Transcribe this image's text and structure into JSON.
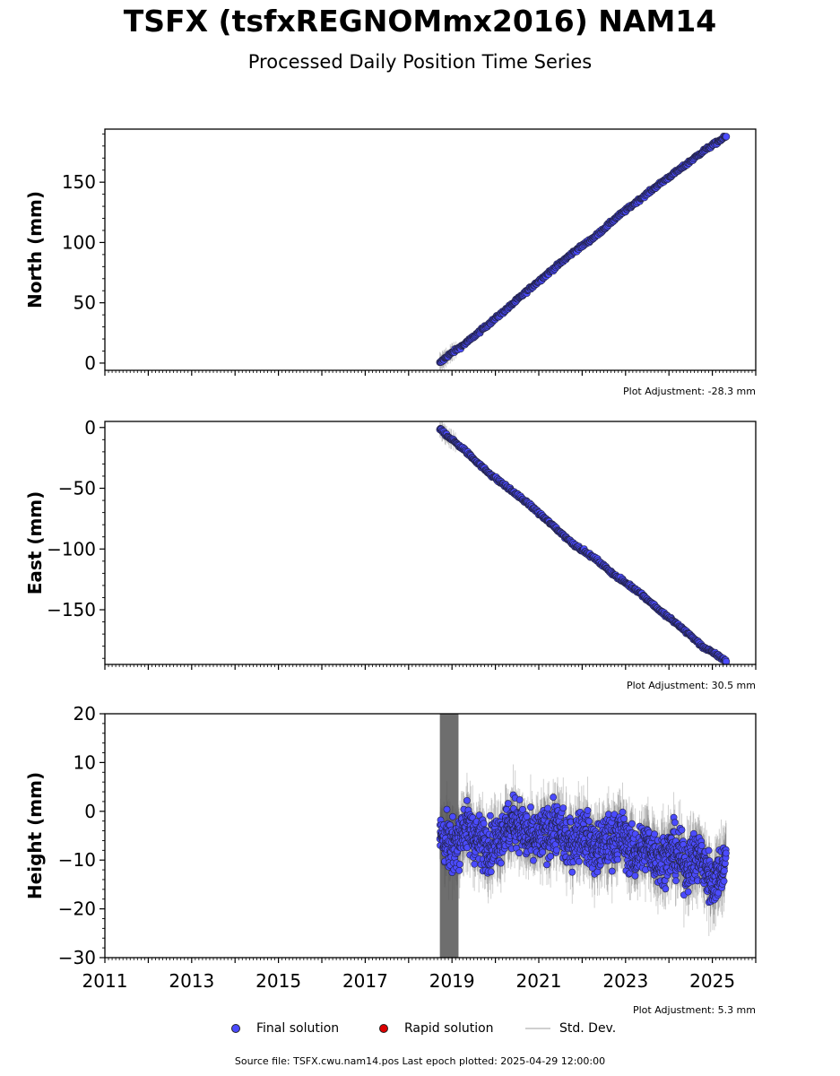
{
  "title": "TSFX (tsfxREGNOMmx2016) NAM14",
  "subtitle": "Processed Daily Position Time Series",
  "legend": {
    "final": {
      "label": "Final solution",
      "color": "#4b4bff"
    },
    "rapid": {
      "label": "Rapid solution",
      "color": "#dd0000"
    },
    "std": {
      "label": "Std. Dev.",
      "color": "#cccccc"
    }
  },
  "footer": "Source file: TSFX.cwu.nam14.pos  Last epoch plotted: 2025-04-29 12:00:00",
  "chart_data": [
    {
      "type": "scatter",
      "ylabel": "North (mm)",
      "xlim": [
        2011,
        2026
      ],
      "ylim": [
        -6,
        194
      ],
      "yticks": [
        0,
        50,
        100,
        150
      ],
      "adjustment": "Plot Adjustment: -28.3 mm",
      "series": [
        {
          "name": "Final solution",
          "x": [
            2018.72,
            2018.9,
            2019.3,
            2019.8,
            2020.3,
            2020.8,
            2021.3,
            2021.8,
            2022.3,
            2022.8,
            2023.3,
            2023.8,
            2024.3,
            2024.8,
            2025.32
          ],
          "y": [
            0,
            6,
            16,
            31,
            46,
            62,
            77,
            92,
            105,
            121,
            135,
            149,
            162,
            176,
            188
          ]
        }
      ]
    },
    {
      "type": "scatter",
      "ylabel": "East (mm)",
      "xlim": [
        2011,
        2026
      ],
      "ylim": [
        -195,
        5
      ],
      "yticks": [
        0,
        -50,
        -100,
        -150
      ],
      "adjustment": "Plot Adjustment: 30.5 mm",
      "series": [
        {
          "name": "Final solution",
          "x": [
            2018.72,
            2018.9,
            2019.3,
            2019.8,
            2020.3,
            2020.8,
            2021.3,
            2021.8,
            2022.3,
            2022.8,
            2023.3,
            2023.8,
            2024.3,
            2024.8,
            2025.32
          ],
          "y": [
            -1,
            -7,
            -19,
            -36,
            -50,
            -64,
            -80,
            -96,
            -108,
            -123,
            -135,
            -151,
            -165,
            -181,
            -192
          ]
        }
      ]
    },
    {
      "type": "scatter",
      "ylabel": "Height (mm)",
      "xlim": [
        2011,
        2026
      ],
      "ylim": [
        -30,
        20
      ],
      "yticks": [
        20,
        10,
        0,
        -10,
        -20,
        -30
      ],
      "xticks": [
        2011,
        2013,
        2015,
        2017,
        2019,
        2021,
        2023,
        2025
      ],
      "adjustment": "Plot Adjustment: 5.3 mm",
      "series": [
        {
          "name": "Final solution",
          "x": [
            2018.72,
            2018.85,
            2019.0,
            2019.3,
            2019.6,
            2019.9,
            2020.2,
            2020.5,
            2020.8,
            2021.1,
            2021.4,
            2021.7,
            2022.0,
            2022.3,
            2022.6,
            2022.9,
            2023.2,
            2023.5,
            2023.8,
            2024.1,
            2024.4,
            2024.7,
            2025.0,
            2025.32
          ],
          "y": [
            -5,
            -6,
            -8,
            -3,
            -6,
            -7,
            -4,
            -2,
            -6,
            -5,
            -3,
            -7,
            -4,
            -8,
            -6,
            -5,
            -9,
            -7,
            -10,
            -8,
            -11,
            -9,
            -15,
            -10
          ]
        }
      ]
    }
  ]
}
